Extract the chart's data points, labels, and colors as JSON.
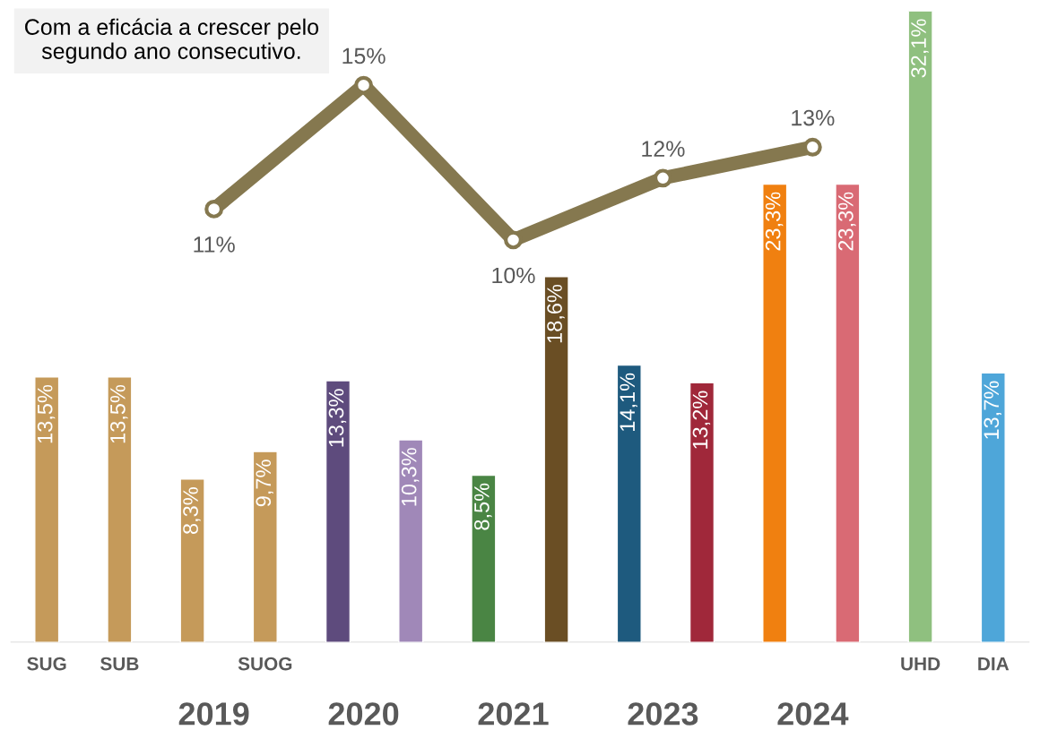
{
  "chart_data": [
    {
      "type": "bar",
      "categories": [
        "SUG",
        "SUB",
        null,
        "SUOG",
        null,
        null,
        null,
        null,
        null,
        null,
        null,
        null,
        "UHD",
        "DIA"
      ],
      "values": [
        13.5,
        13.5,
        8.3,
        9.7,
        13.3,
        10.3,
        8.5,
        18.6,
        14.1,
        13.2,
        23.3,
        23.3,
        32.1,
        13.7
      ],
      "colors": [
        "#c59a5a",
        "#c59a5a",
        "#c59a5a",
        "#c59a5a",
        "#5e4b7d",
        "#a088b8",
        "#4a8544",
        "#6a4e24",
        "#1e5a7e",
        "#a0283a",
        "#f08010",
        "#d96a74",
        "#8fc07f",
        "#4ea6d9"
      ],
      "value_labels": [
        "13,5%",
        "13,5%",
        "8,3%",
        "9,7%",
        "13,3%",
        "10,3%",
        "8,5%",
        "18,6%",
        "14,1%",
        "13,2%",
        "23,3%",
        "23,3%",
        "32,1%",
        "13,7%"
      ],
      "ylim": [
        0,
        32.1
      ],
      "grid": false,
      "legend": false,
      "tick_labels": "x",
      "annotations": [
        "Com a eficácia a crescer pelo segundo ano consecutivo."
      ]
    },
    {
      "type": "line",
      "categories": [
        "2019",
        "2020",
        "2021",
        "2023",
        "2024"
      ],
      "series": [
        {
          "color": "#85784f",
          "values": [
            11,
            15,
            10,
            12,
            13
          ],
          "value_labels": [
            "11%",
            "15%",
            "10%",
            "12%",
            "13%"
          ]
        }
      ],
      "marker": "circle",
      "line_style": "solid",
      "grid": false,
      "legend": false,
      "tick_labels": "x"
    }
  ]
}
